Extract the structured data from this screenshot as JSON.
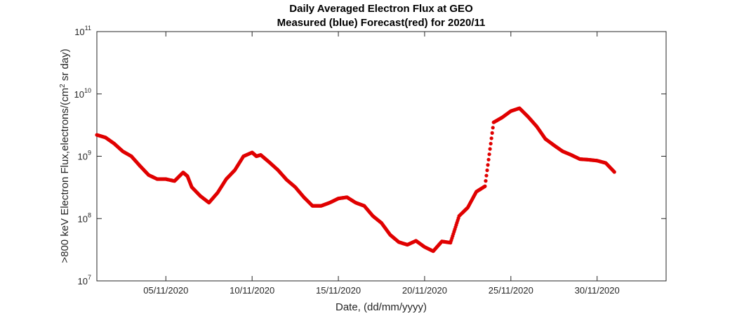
{
  "chart_data": {
    "type": "scatter",
    "title": "Daily Averaged Electron Flux at GEO",
    "subtitle": "Measured (blue) Forecast(red) for 2020/11",
    "xlabel": "Date, (dd/mm/yyyy)",
    "ylabel_main": ">800 keV Electron Flux,electrons/(cm",
    "ylabel_sup": "2",
    "ylabel_tail": " sr day)",
    "y_scale": "log",
    "xlim": [
      "2020-11-01",
      "2020-12-04"
    ],
    "ylim": [
      10000000,
      100000000000
    ],
    "x_ticks": [
      {
        "date": "2020-11-05",
        "label": "05/11/2020"
      },
      {
        "date": "2020-11-10",
        "label": "10/11/2020"
      },
      {
        "date": "2020-11-15",
        "label": "15/11/2020"
      },
      {
        "date": "2020-11-20",
        "label": "20/11/2020"
      },
      {
        "date": "2020-11-25",
        "label": "25/11/2020"
      },
      {
        "date": "2020-11-30",
        "label": "30/11/2020"
      }
    ],
    "y_ticks": [
      {
        "value": 10000000,
        "base": "10",
        "exp": "7"
      },
      {
        "value": 100000000,
        "base": "10",
        "exp": "8"
      },
      {
        "value": 1000000000,
        "base": "10",
        "exp": "9"
      },
      {
        "value": 10000000000,
        "base": "10",
        "exp": "10"
      },
      {
        "value": 100000000000,
        "base": "10",
        "exp": "11"
      }
    ],
    "grid": false,
    "marker_color": "#e00000",
    "series": [
      {
        "x": [
          "2020-11-01 00:00",
          "2020-11-01 12:00",
          "2020-11-02 00:00",
          "2020-11-02 12:00",
          "2020-11-03 00:00",
          "2020-11-03 12:00",
          "2020-11-04 00:00",
          "2020-11-04 12:00",
          "2020-11-05 00:00",
          "2020-11-05 12:00",
          "2020-11-06 00:00",
          "2020-11-06 06:00",
          "2020-11-06 12:00",
          "2020-11-07 00:00",
          "2020-11-07 12:00",
          "2020-11-08 00:00",
          "2020-11-08 12:00",
          "2020-11-09 00:00",
          "2020-11-09 12:00",
          "2020-11-10 00:00",
          "2020-11-10 06:00",
          "2020-11-10 12:00",
          "2020-11-11 00:00",
          "2020-11-11 12:00",
          "2020-11-12 00:00",
          "2020-11-12 12:00",
          "2020-11-13 00:00",
          "2020-11-13 12:00",
          "2020-11-14 00:00",
          "2020-11-14 12:00",
          "2020-11-15 00:00",
          "2020-11-15 12:00",
          "2020-11-16 00:00",
          "2020-11-16 12:00",
          "2020-11-17 00:00",
          "2020-11-17 12:00",
          "2020-11-18 00:00",
          "2020-11-18 12:00",
          "2020-11-19 00:00",
          "2020-11-19 12:00",
          "2020-11-20 00:00",
          "2020-11-20 12:00",
          "2020-11-21 00:00",
          "2020-11-21 12:00",
          "2020-11-22 00:00",
          "2020-11-22 12:00",
          "2020-11-23 00:00",
          "2020-11-23 12:00",
          "2020-11-24 00:00",
          "2020-11-24 12:00",
          "2020-11-25 00:00",
          "2020-11-25 12:00",
          "2020-11-26 00:00",
          "2020-11-26 12:00",
          "2020-11-27 00:00",
          "2020-11-27 12:00",
          "2020-11-28 00:00",
          "2020-11-28 12:00",
          "2020-11-29 00:00",
          "2020-11-29 12:00",
          "2020-11-30 00:00",
          "2020-11-30 12:00",
          "2020-12-01 00:00"
        ],
        "y": [
          2200000000,
          2000000000,
          1600000000,
          1200000000,
          1000000000,
          700000000,
          500000000,
          430000000,
          430000000,
          400000000,
          550000000,
          480000000,
          320000000,
          230000000,
          180000000,
          260000000,
          430000000,
          600000000,
          1000000000,
          1150000000,
          1000000000,
          1050000000,
          800000000,
          600000000,
          420000000,
          320000000,
          220000000,
          160000000,
          160000000,
          180000000,
          210000000,
          220000000,
          180000000,
          160000000,
          110000000,
          85000000,
          55000000,
          42000000,
          38000000,
          44000000,
          35000000,
          30000000,
          43000000,
          41000000,
          110000000,
          150000000,
          270000000,
          330000000,
          3500000000,
          4200000000,
          5300000000,
          5900000000,
          4300000000,
          3000000000,
          1900000000,
          1500000000,
          1200000000,
          1050000000,
          900000000,
          880000000,
          850000000,
          780000000,
          560000000
        ]
      }
    ]
  }
}
